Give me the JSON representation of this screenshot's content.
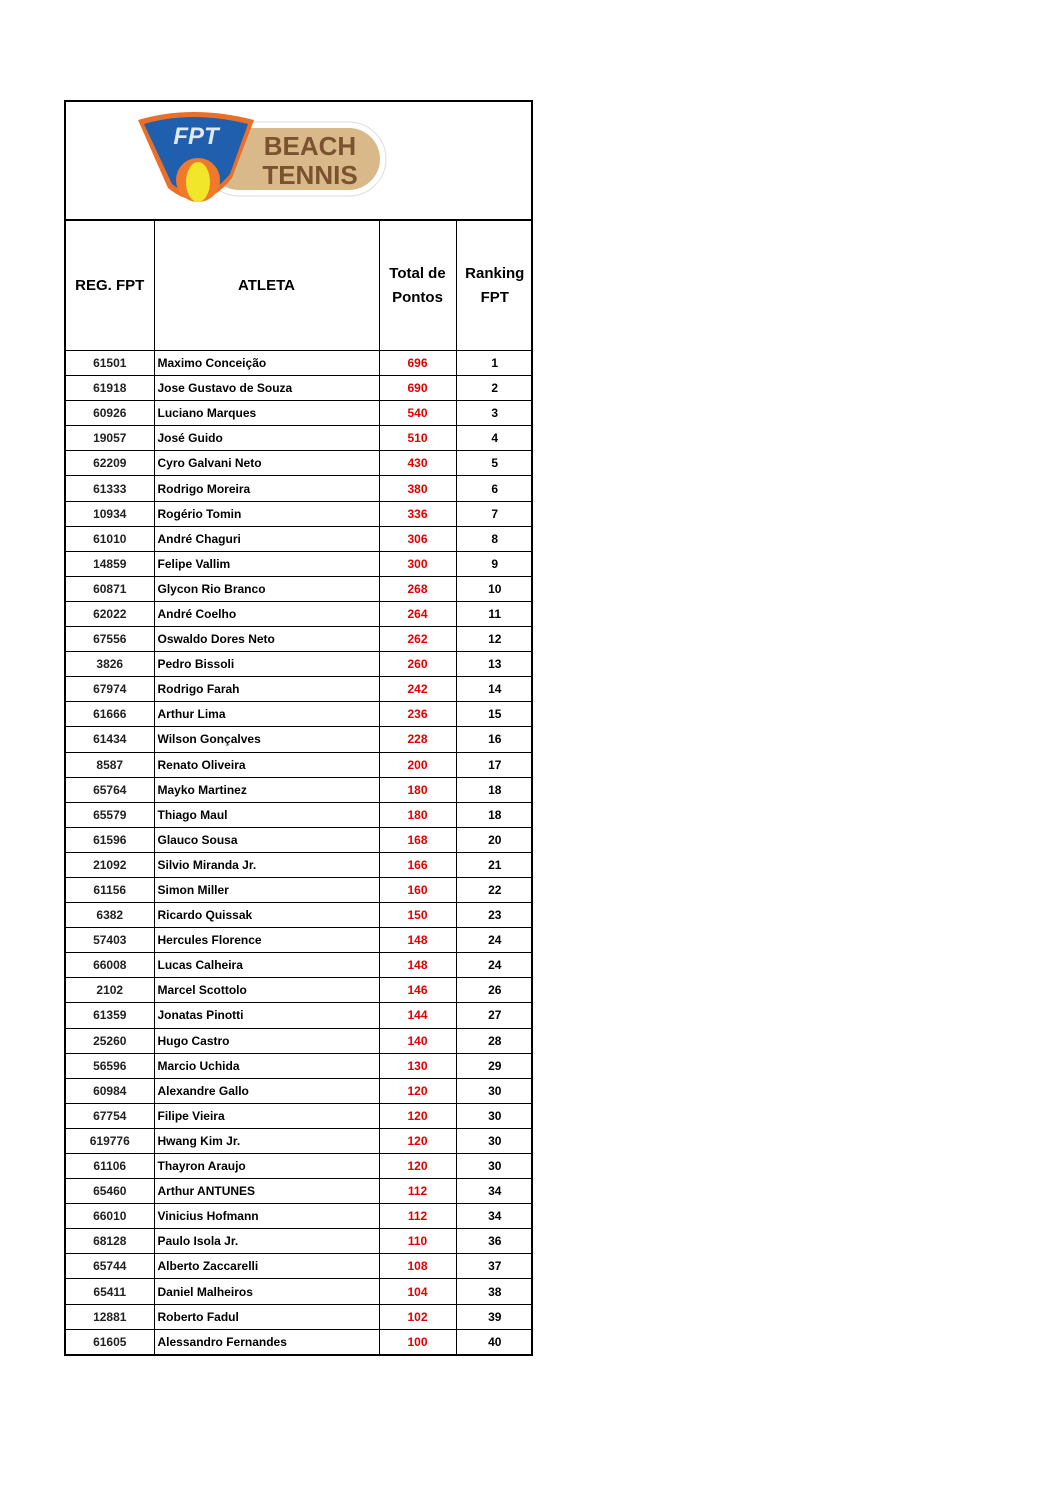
{
  "logo": {
    "badge_text": "FPT",
    "line1": "BEACH",
    "line2": "TENNIS"
  },
  "colors": {
    "points": "#e00000",
    "text": "#000000"
  },
  "headers": {
    "reg": "REG. FPT",
    "athlete": "ATLETA",
    "points_line1": "Total de",
    "points_line2": "Pontos",
    "rank_line1": "Ranking",
    "rank_line2": "FPT"
  },
  "rows": [
    [
      "61501",
      "Maximo Conceição",
      "696",
      "1"
    ],
    [
      "61918",
      "Jose Gustavo de Souza",
      "690",
      "2"
    ],
    [
      "60926",
      "Luciano Marques",
      "540",
      "3"
    ],
    [
      "19057",
      "José Guido",
      "510",
      "4"
    ],
    [
      "62209",
      "Cyro Galvani Neto",
      "430",
      "5"
    ],
    [
      "61333",
      "Rodrigo Moreira",
      "380",
      "6"
    ],
    [
      "10934",
      "Rogério Tomin",
      "336",
      "7"
    ],
    [
      "61010",
      "André Chaguri",
      "306",
      "8"
    ],
    [
      "14859",
      "Felipe Vallim",
      "300",
      "9"
    ],
    [
      "60871",
      "Glycon Rio Branco",
      "268",
      "10"
    ],
    [
      "62022",
      "André Coelho",
      "264",
      "11"
    ],
    [
      "67556",
      "Oswaldo Dores Neto",
      "262",
      "12"
    ],
    [
      "3826",
      "Pedro Bissoli",
      "260",
      "13"
    ],
    [
      "67974",
      "Rodrigo Farah",
      "242",
      "14"
    ],
    [
      "61666",
      "Arthur Lima",
      "236",
      "15"
    ],
    [
      "61434",
      "Wilson Gonçalves",
      "228",
      "16"
    ],
    [
      "8587",
      "Renato Oliveira",
      "200",
      "17"
    ],
    [
      "65764",
      "Mayko Martinez",
      "180",
      "18"
    ],
    [
      "65579",
      "Thiago Maul",
      "180",
      "18"
    ],
    [
      "61596",
      "Glauco Sousa",
      "168",
      "20"
    ],
    [
      "21092",
      "Silvio Miranda Jr.",
      "166",
      "21"
    ],
    [
      "61156",
      "Simon Miller",
      "160",
      "22"
    ],
    [
      "6382",
      "Ricardo Quissak",
      "150",
      "23"
    ],
    [
      "57403",
      "Hercules Florence",
      "148",
      "24"
    ],
    [
      "66008",
      "Lucas Calheira",
      "148",
      "24"
    ],
    [
      "2102",
      "Marcel Scottolo",
      "146",
      "26"
    ],
    [
      "61359",
      "Jonatas Pinotti",
      "144",
      "27"
    ],
    [
      "25260",
      "Hugo Castro",
      "140",
      "28"
    ],
    [
      "56596",
      "Marcio Uchida",
      "130",
      "29"
    ],
    [
      "60984",
      "Alexandre Gallo",
      "120",
      "30"
    ],
    [
      "67754",
      "Filipe Vieira",
      "120",
      "30"
    ],
    [
      "619776",
      "Hwang Kim Jr.",
      "120",
      "30"
    ],
    [
      "61106",
      "Thayron Araujo",
      "120",
      "30"
    ],
    [
      "65460",
      "Arthur ANTUNES",
      "112",
      "34"
    ],
    [
      "66010",
      "Vinicius Hofmann",
      "112",
      "34"
    ],
    [
      "68128",
      "Paulo Isola Jr.",
      "110",
      "36"
    ],
    [
      "65744",
      "Alberto Zaccarelli",
      "108",
      "37"
    ],
    [
      "65411",
      "Daniel Malheiros",
      "104",
      "38"
    ],
    [
      "12881",
      "Roberto Fadul",
      "102",
      "39"
    ],
    [
      "61605",
      "Alessandro Fernandes",
      "100",
      "40"
    ]
  ]
}
